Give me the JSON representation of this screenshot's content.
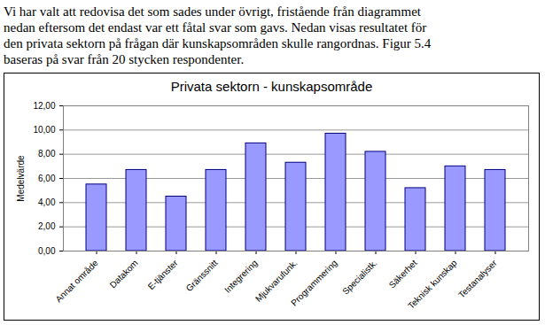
{
  "paragraph": [
    "Vi har valt att redovisa det som sades under övrigt, fristående från diagrammet",
    "nedan eftersom det endast var ett fåtal svar som gavs. Nedan visas resultatet för",
    "den privata sektorn på frågan där kunskapsområden skulle rangordnas. Figur 5.4",
    "baseras på svar från 20 stycken respondenter."
  ],
  "chart_data": {
    "type": "bar",
    "title": "Privata sektorn - kunskapsområde",
    "y_label": "Medelvärde",
    "categories": [
      "Annat område",
      "Datakom",
      "E-tjänster",
      "Gränssnitt",
      "Integrering",
      "Mjukvarufunk.",
      "Programmering",
      "Specialistk.",
      "Säkerhet",
      "Teknisk kunskap",
      "Testanalyser"
    ],
    "values": [
      5.5,
      6.7,
      4.5,
      6.7,
      8.9,
      7.3,
      9.7,
      8.2,
      5.2,
      7.0,
      6.7
    ],
    "color": "#9999ff",
    "ylim": [
      0,
      12
    ],
    "yticks": [
      {
        "value": 0,
        "label": "0,00"
      },
      {
        "value": 2,
        "label": "2,00"
      },
      {
        "value": 4,
        "label": "4,00"
      },
      {
        "value": 6,
        "label": "6,00"
      },
      {
        "value": 8,
        "label": "8,00"
      },
      {
        "value": 10,
        "label": "10,00"
      },
      {
        "value": 12,
        "label": "12,00"
      }
    ],
    "grid": true
  }
}
